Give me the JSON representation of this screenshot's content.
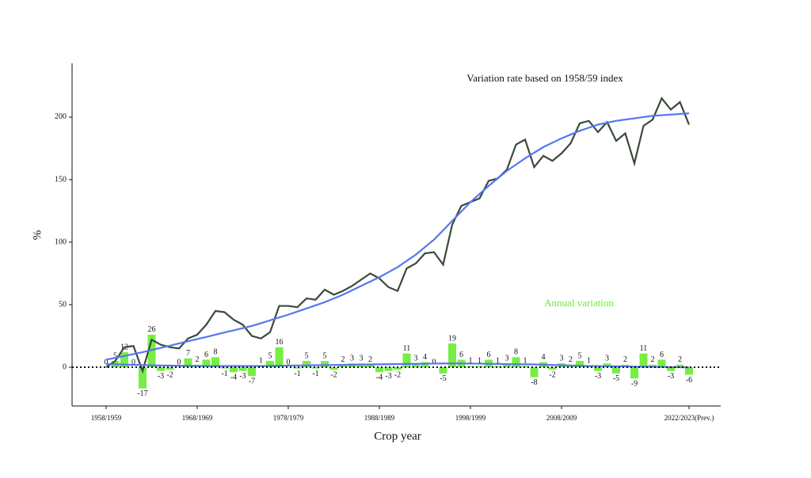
{
  "chart_data": {
    "type": "combo",
    "x_label": "Crop year",
    "y_label": "%",
    "categories": [
      "1958/1959",
      null,
      null,
      null,
      null,
      null,
      null,
      null,
      null,
      null,
      "1968/1969",
      null,
      null,
      null,
      null,
      null,
      null,
      null,
      null,
      null,
      "1978/1979",
      null,
      null,
      null,
      null,
      null,
      null,
      null,
      null,
      null,
      "1988/1989",
      null,
      null,
      null,
      null,
      null,
      null,
      null,
      null,
      null,
      "1998/1999",
      null,
      null,
      null,
      null,
      null,
      null,
      null,
      null,
      null,
      "2008/2009",
      null,
      null,
      null,
      null,
      null,
      null,
      null,
      null,
      null,
      null,
      null,
      null,
      null,
      "2022/2023(Prev.)"
    ],
    "series": [
      {
        "name": "Variation rate based on 1958/59 index",
        "type": "line",
        "color": "#3b4a3b",
        "values": [
          0,
          5,
          16,
          17,
          -3,
          22,
          18,
          16,
          15,
          23,
          26,
          34,
          45,
          44,
          38,
          34,
          25,
          23,
          28,
          49,
          49,
          48,
          55,
          54,
          62,
          58,
          61,
          65,
          70,
          75,
          71,
          64,
          61,
          79,
          83,
          91,
          92,
          82,
          114,
          129,
          132,
          135,
          149,
          151,
          158,
          178,
          182,
          160,
          169,
          165,
          171,
          179,
          195,
          197,
          188,
          196,
          181,
          187,
          163,
          193,
          198,
          215,
          206,
          212,
          194
        ]
      },
      {
        "name": "Annual variation",
        "type": "bar",
        "color": "#77ee44",
        "label_color": "#66ee33",
        "values": [
          0,
          5,
          12,
          0,
          -17,
          26,
          -3,
          -2,
          0,
          7,
          2,
          6,
          8,
          -1,
          -4,
          -3,
          -7,
          1,
          5,
          16,
          0,
          -1,
          5,
          -1,
          5,
          -2,
          2,
          3,
          3,
          2,
          -4,
          -3,
          -2,
          11,
          3,
          4,
          0,
          -5,
          19,
          6,
          1,
          1,
          6,
          1,
          3,
          8,
          1,
          -8,
          4,
          -2,
          3,
          2,
          5,
          1,
          -3,
          3,
          -5,
          2,
          -9,
          11,
          2,
          6,
          -3,
          2,
          -6
        ]
      },
      {
        "type": "smooth",
        "color": "#5577ee",
        "values": [
          6,
          7.5,
          9,
          10.5,
          12,
          13.8,
          15.5,
          17.2,
          19,
          20.8,
          22.5,
          24.2,
          26,
          27.8,
          29.5,
          31.2,
          33,
          35.2,
          37.5,
          39.8,
          42,
          44.5,
          47,
          49.5,
          52,
          55,
          58,
          61.5,
          65,
          68.5,
          72,
          76,
          80,
          85,
          90,
          96,
          102,
          109.5,
          117,
          124.5,
          132,
          138.5,
          145,
          151,
          157,
          162,
          167,
          171.5,
          176,
          179.5,
          183,
          186,
          189,
          191.5,
          194,
          195.5,
          197,
          198,
          199,
          200,
          201,
          201.5,
          202,
          202.5,
          203
        ]
      },
      {
        "type": "smooth",
        "color": "#5577ee",
        "values": [
          2.5,
          2.3,
          2.1,
          1.9,
          1.7,
          1.5,
          1.4,
          1.3,
          1.2,
          1.1,
          1.0,
          1.0,
          1.0,
          1.0,
          1.0,
          1.0,
          1.0,
          1.0,
          1.1,
          1.2,
          1.3,
          1.4,
          1.5,
          1.6,
          1.7,
          1.8,
          1.9,
          2.0,
          2.1,
          2.2,
          2.3,
          2.4,
          2.5,
          2.6,
          2.7,
          2.8,
          2.9,
          3.0,
          3.0,
          3.0,
          2.9,
          2.8,
          2.7,
          2.6,
          2.5,
          2.4,
          2.3,
          2.2,
          2.0,
          1.8,
          1.6,
          1.4,
          1.2,
          1.0,
          0.9,
          0.8,
          0.7,
          0.6,
          0.5,
          0.4,
          0.3,
          0.2,
          0.1,
          0.0,
          -0.2
        ]
      }
    ],
    "hline": 0,
    "ylim": [
      -31,
      243
    ],
    "yticks": [
      0,
      50,
      100,
      150,
      200
    ]
  }
}
